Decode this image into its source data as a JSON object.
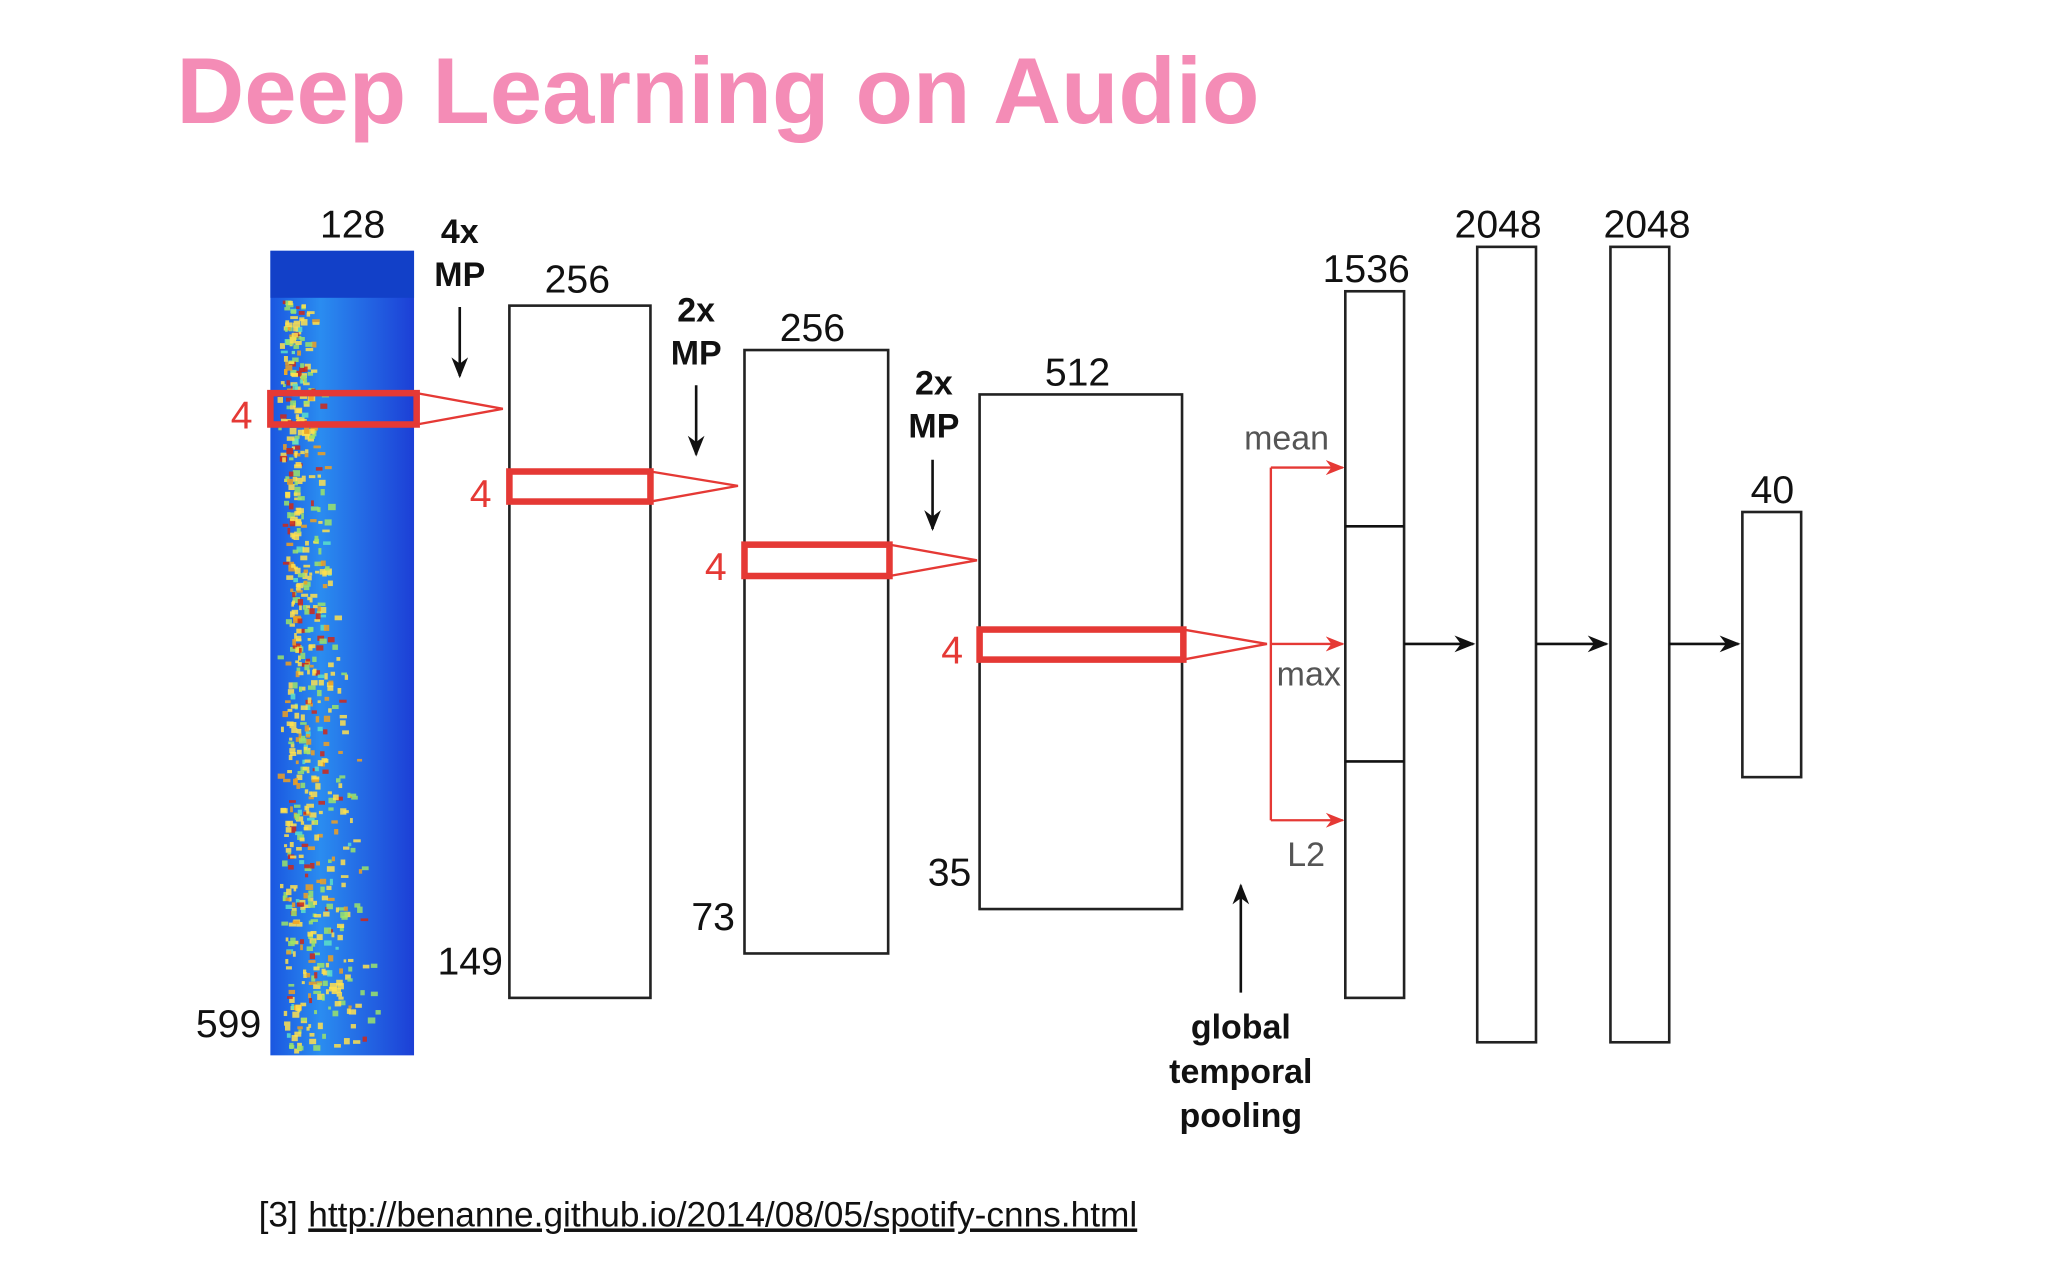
{
  "title": "Deep Learning on Audio",
  "input": {
    "width": "128",
    "height": "599",
    "window": "4"
  },
  "layers": [
    {
      "pool": [
        "4x",
        "MP"
      ],
      "width": "256",
      "height": "149",
      "window": "4"
    },
    {
      "pool": [
        "2x",
        "MP"
      ],
      "width": "256",
      "height": "73",
      "window": "4"
    },
    {
      "pool": [
        "2x",
        "MP"
      ],
      "width": "512",
      "height": "35",
      "window": "4"
    }
  ],
  "pooling": {
    "ops": [
      "mean",
      "max",
      "L2"
    ],
    "label": [
      "global",
      "temporal",
      "pooling"
    ]
  },
  "dense": [
    "1536",
    "2048",
    "2048",
    "40"
  ],
  "footnote": {
    "ref": "[3]",
    "link": "http://benanne.github.io/2014/08/05/spotify-cnns.html"
  }
}
